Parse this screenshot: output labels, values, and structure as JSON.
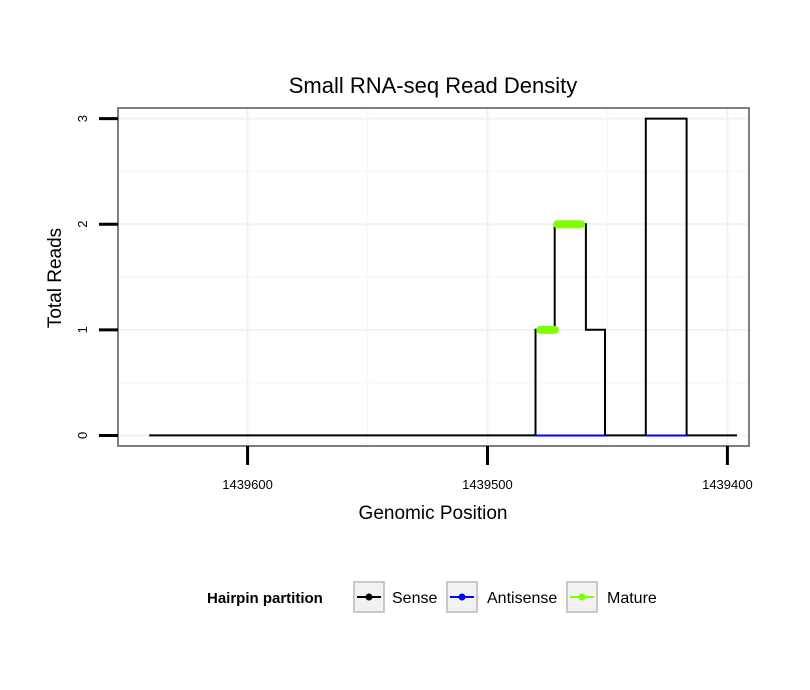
{
  "chart_data": {
    "type": "line",
    "title": "Small RNA-seq Read Density",
    "xlabel": "Genomic Position",
    "ylabel": "Total Reads",
    "x_reversed": true,
    "xlim": [
      1439654,
      1439391
    ],
    "ylim": [
      -0.1,
      3.1
    ],
    "x_ticks": [
      1439600,
      1439500,
      1439400
    ],
    "x_tick_labels": [
      "1439600",
      "1439500",
      "1439400"
    ],
    "y_ticks": [
      0,
      1,
      2,
      3
    ],
    "y_tick_labels": [
      "0",
      "1",
      "2",
      "3"
    ],
    "grid": true,
    "legend": {
      "title": "Hairpin partition",
      "position": "bottom",
      "entries": [
        {
          "label": "Sense",
          "color": "#000000"
        },
        {
          "label": "Antisense",
          "color": "#0000ff"
        },
        {
          "label": "Mature",
          "color": "#7fff00"
        }
      ]
    },
    "series": [
      {
        "name": "Sense",
        "color": "#000000",
        "points": [
          [
            1439641,
            0
          ],
          [
            1439480,
            0
          ],
          [
            1439480,
            1
          ],
          [
            1439472,
            1
          ],
          [
            1439472,
            2
          ],
          [
            1439459,
            2
          ],
          [
            1439459,
            1
          ],
          [
            1439451,
            1
          ],
          [
            1439451,
            0
          ],
          [
            1439434,
            0
          ],
          [
            1439434,
            3
          ],
          [
            1439417,
            3
          ],
          [
            1439417,
            0
          ],
          [
            1439396,
            0
          ]
        ]
      },
      {
        "name": "Antisense",
        "color": "#0000ff",
        "points": [
          [
            1439480,
            0
          ],
          [
            1439451,
            0
          ],
          [
            1439434,
            0
          ],
          [
            1439417,
            0
          ]
        ]
      },
      {
        "name": "Mature",
        "color": "#7fff00",
        "segments": [
          {
            "x": [
              1439478,
              1439472
            ],
            "y": 1
          },
          {
            "x": [
              1439471,
              1439461
            ],
            "y": 2
          }
        ]
      }
    ]
  }
}
